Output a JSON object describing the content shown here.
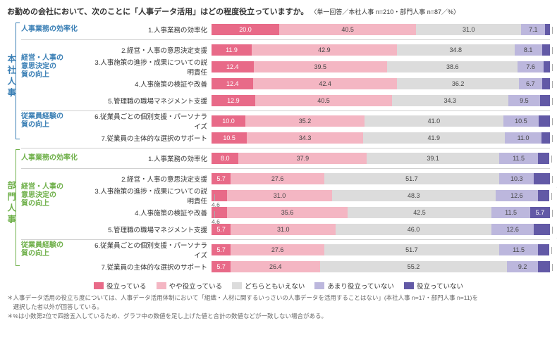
{
  "title_main": "お勤めの会社において、次のことに「人事データ活用」はどの程度役立っていますか。",
  "title_sub": "〈単一回答／本社人事 n=210・部門人事 n=87／%〉",
  "colors": {
    "hq": "#3a7fb5",
    "dept": "#6fb04a",
    "seg": [
      "#e86a88",
      "#f4b6c3",
      "#dcdcdc",
      "#bcb7dd",
      "#6259a6"
    ],
    "divider": "#d0d0d0"
  },
  "legend": [
    "役立っている",
    "やや役立っている",
    "どちらともいえない",
    "あまり役立っていない",
    "役立っていない"
  ],
  "groups": [
    {
      "key": "hq",
      "vlabel": "本社人事",
      "vcolor": "#3a7fb5",
      "sections": [
        {
          "cat": "人事業務の効率化",
          "color": "#3a7fb5",
          "rows": [
            {
              "label": "1.人事業務の効率化",
              "vals": [
                20.0,
                40.5,
                31.0,
                7.1,
                1.4
              ]
            }
          ]
        },
        {
          "cat": "経営・人事の\n意思決定の\n質の向上",
          "color": "#3a7fb5",
          "rows": [
            {
              "label": "2.経営・人事の意思決定支援",
              "vals": [
                11.9,
                42.9,
                34.8,
                8.1,
                2.4
              ]
            },
            {
              "label": "3.人事施策の進捗・成果についての説明責任",
              "vals": [
                12.4,
                39.5,
                38.6,
                7.6,
                1.9
              ]
            },
            {
              "label": "4.人事施策の検証や改善",
              "vals": [
                12.4,
                42.4,
                36.2,
                6.7,
                2.4
              ]
            },
            {
              "label": "5.管理職の職場マネジメント支援",
              "vals": [
                12.9,
                40.5,
                34.3,
                9.5,
                2.9
              ]
            }
          ]
        },
        {
          "cat": "従業員経験の\n質の向上",
          "color": "#3a7fb5",
          "rows": [
            {
              "label": "6.従業員ごとの個別支援・パーソナライズ",
              "vals": [
                10.0,
                35.2,
                41.0,
                10.5,
                3.3
              ]
            },
            {
              "label": "7.従業員の主体的な選択のサポート",
              "vals": [
                10.5,
                34.3,
                41.9,
                11.0,
                2.4
              ]
            }
          ]
        }
      ]
    },
    {
      "key": "dept",
      "vlabel": "部門人事",
      "vcolor": "#6fb04a",
      "sections": [
        {
          "cat": "人事業務の効率化",
          "color": "#6fb04a",
          "rows": [
            {
              "label": "1.人事業務の効率化",
              "vals": [
                8.0,
                37.9,
                39.1,
                11.5,
                3.4
              ]
            }
          ]
        },
        {
          "cat": "経営・人事の\n意思決定の\n質の向上",
          "color": "#6fb04a",
          "rows": [
            {
              "label": "2.経営・人事の意思決定支援",
              "vals": [
                5.7,
                27.6,
                51.7,
                10.3,
                4.6
              ]
            },
            {
              "label": "3.人事施策の進捗・成果についての説明責任",
              "vals": [
                4.6,
                31.0,
                48.3,
                12.6,
                3.4
              ],
              "below_first": true
            },
            {
              "label": "4.人事施策の検証や改善",
              "vals": [
                4.6,
                35.6,
                42.5,
                11.5,
                5.7
              ],
              "below_first": true
            },
            {
              "label": "5.管理職の職場マネジメント支援",
              "vals": [
                5.7,
                31.0,
                46.0,
                12.6,
                4.6
              ]
            }
          ]
        },
        {
          "cat": "従業員経験の\n質の向上",
          "color": "#6fb04a",
          "rows": [
            {
              "label": "6.従業員ごとの個別支援・パーソナライズ",
              "vals": [
                5.7,
                27.6,
                51.7,
                11.5,
                3.4
              ]
            },
            {
              "label": "7.従業員の主体的な選択のサポート",
              "vals": [
                5.7,
                26.4,
                55.2,
                9.2,
                3.4
              ]
            }
          ]
        }
      ]
    }
  ],
  "footnotes": [
    "＊人事データ活用の役立ち度については、人事データ活用体制において「組織・人材に関するいっさいの人事データを活用することはない」(本社人事 n=17・部門人事 n=11)を\n　選択した者以外が回答している。",
    "＊%は小数第2位で四捨五入しているため、グラフ中の数値を足し上げた値と合計の数値などが一致しない場合がある。"
  ]
}
